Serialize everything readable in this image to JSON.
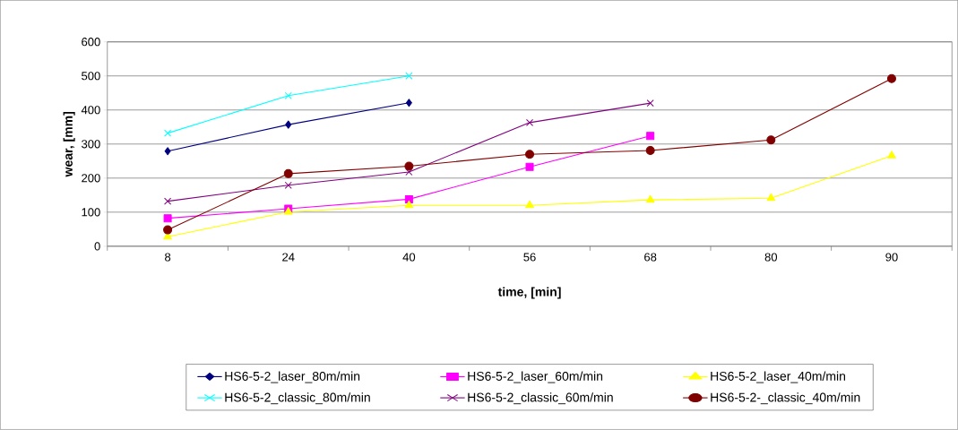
{
  "chart_data": {
    "type": "line",
    "xlabel": "time, [min]",
    "ylabel": "wear, [mm]",
    "categories": [
      "8",
      "24",
      "40",
      "56",
      "68",
      "80",
      "90"
    ],
    "ylim": [
      0,
      600
    ],
    "yticks": [
      0,
      100,
      200,
      300,
      400,
      500,
      600
    ],
    "grid": "y",
    "legend": "bottom",
    "line_style": "solid",
    "series": [
      {
        "name": "HS6-5-2_laser_80m/min",
        "color": "#000080",
        "marker": "diamond",
        "values": [
          279,
          357,
          421,
          null,
          null,
          null,
          null
        ]
      },
      {
        "name": "HS6-5-2_laser_60m/min",
        "color": "#ff00ff",
        "marker": "square",
        "values": [
          82,
          110,
          138,
          233,
          324,
          null,
          null
        ]
      },
      {
        "name": "HS6-5-2_laser_40m/min",
        "color": "#ffff00",
        "marker": "triangle",
        "values": [
          28,
          101,
          120,
          120,
          136,
          141,
          266
        ]
      },
      {
        "name": "HS6-5-2_classic_80m/min",
        "color": "#00ffff",
        "marker": "cross",
        "values": [
          332,
          442,
          500,
          null,
          null,
          null,
          null
        ]
      },
      {
        "name": "HS6-5-2_classic_60m/min",
        "color": "#800080",
        "marker": "cross",
        "values": [
          132,
          179,
          218,
          363,
          420,
          null,
          null
        ]
      },
      {
        "name": "HS6-5-2-_classic_40m/min",
        "color": "#800000",
        "marker": "circle",
        "values": [
          48,
          213,
          235,
          270,
          281,
          312,
          492
        ]
      }
    ]
  }
}
